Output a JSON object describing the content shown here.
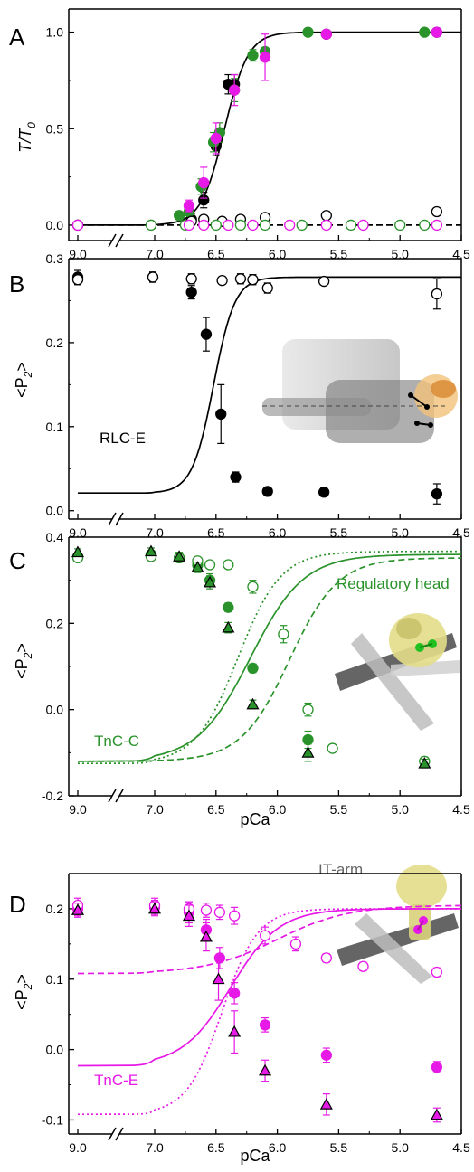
{
  "colors": {
    "black": "#000000",
    "green": "#2a922a",
    "magenta": "#e619e6",
    "gray": "#666666"
  },
  "chart_data": [
    {
      "panel_label": "A",
      "type": "scatter",
      "ylabel_main": "T/T",
      "ylabel_sub": "0",
      "xlabel": "",
      "xlim": [
        9.0,
        4.5
      ],
      "ylim": [
        -0.08,
        1.12
      ],
      "x_ticks": [
        "9.0",
        "7.0",
        "6.5",
        "6.0",
        "5.5",
        "5.0",
        "4.5"
      ],
      "y_ticks": [
        0.0,
        0.5,
        1.0
      ],
      "y_tick_labels": [
        "0.0",
        "0.5",
        "1.0"
      ],
      "series": [
        {
          "color": "black",
          "marker": "circle",
          "filled": true,
          "x": [
            9.0,
            6.7,
            6.6,
            6.5,
            6.4,
            6.35,
            5.6,
            4.7
          ],
          "y": [
            0.0,
            0.03,
            0.13,
            0.41,
            0.73,
            0.73,
            0.99,
            1.0
          ],
          "err": [
            0,
            0.03,
            0.04,
            0.05,
            0.05,
            0.05,
            0.01,
            0.01
          ]
        },
        {
          "color": "green",
          "marker": "circle",
          "filled": true,
          "x": [
            7.1,
            6.8,
            6.72,
            6.62,
            6.52,
            6.47,
            6.35,
            6.2,
            6.1,
            5.75,
            4.8
          ],
          "y": [
            0.0,
            0.05,
            0.07,
            0.2,
            0.43,
            0.48,
            0.7,
            0.88,
            0.9,
            1.0,
            1.0
          ],
          "err": [
            0,
            0.02,
            0.02,
            0.04,
            0.05,
            0.05,
            0.06,
            0.03,
            0.02,
            0.01,
            0.01
          ]
        },
        {
          "color": "magenta",
          "marker": "circle",
          "filled": true,
          "x": [
            9.0,
            6.72,
            6.6,
            6.5,
            6.35,
            6.1,
            5.6,
            4.7
          ],
          "y": [
            0.0,
            0.1,
            0.22,
            0.45,
            0.7,
            0.87,
            0.99,
            1.0
          ],
          "err": [
            0,
            0.03,
            0.08,
            0.08,
            0.08,
            0.12,
            0.01,
            0.01
          ]
        },
        {
          "color": "black",
          "marker": "circle",
          "filled": false,
          "x": [
            9.0,
            6.7,
            6.6,
            6.45,
            6.3,
            6.1,
            5.6,
            4.7
          ],
          "y": [
            0.0,
            0.02,
            0.03,
            0.02,
            0.03,
            0.04,
            0.05,
            0.07
          ],
          "err": [
            0,
            0,
            0,
            0,
            0,
            0,
            0,
            0
          ]
        },
        {
          "color": "green",
          "marker": "circle",
          "filled": false,
          "x": [
            7.1,
            6.75,
            6.5,
            6.3,
            6.1,
            5.8,
            5.4,
            5.0,
            4.8
          ],
          "y": [
            0.0,
            0.0,
            0.0,
            0.0,
            0.0,
            0.0,
            0.0,
            0.0,
            0.0
          ],
          "err": [
            0,
            0,
            0,
            0,
            0,
            0,
            0,
            0,
            0
          ]
        },
        {
          "color": "magenta",
          "marker": "circle",
          "filled": false,
          "x": [
            9.0,
            6.72,
            6.6,
            6.4,
            6.2,
            5.9,
            5.6,
            5.3,
            4.7
          ],
          "y": [
            0.0,
            0.0,
            0.0,
            0.0,
            0.0,
            0.0,
            0.0,
            0.0,
            0.0
          ],
          "err": [
            0,
            0,
            0,
            0,
            0,
            0,
            0,
            0,
            0
          ]
        }
      ],
      "fits": [
        {
          "color": "black",
          "style": "solid",
          "top": 1.0,
          "bottom": 0.0,
          "pca50": 6.43,
          "nh": 4.5
        },
        {
          "color": "black",
          "style": "dashed",
          "top": 0.0,
          "bottom": 0.0,
          "pca50": 6.0,
          "nh": 1.0
        }
      ]
    },
    {
      "panel_label": "B",
      "type": "scatter",
      "ylabel_main": "<P",
      "ylabel_sub": "2",
      "ylabel_end": ">",
      "xlabel": "",
      "xlim": [
        9.0,
        4.5
      ],
      "ylim": [
        -0.01,
        0.3
      ],
      "x_ticks": [
        "9.0",
        "7.0",
        "6.5",
        "6.0",
        "5.5",
        "5.0",
        "4.5"
      ],
      "y_ticks": [
        0.0,
        0.1,
        0.2,
        0.3
      ],
      "y_tick_labels": [
        "0.0",
        "0.1",
        "0.2",
        "0.3"
      ],
      "annotation": "RLC-E",
      "series": [
        {
          "color": "black",
          "marker": "circle",
          "filled": true,
          "x": [
            9.0,
            7.05,
            6.7,
            6.58,
            6.46,
            6.34,
            6.08,
            5.62,
            4.7
          ],
          "y": [
            0.278,
            0.278,
            0.26,
            0.21,
            0.115,
            0.04,
            0.023,
            0.022,
            0.02
          ],
          "err": [
            0.008,
            0.006,
            0.008,
            0.02,
            0.035,
            0.006,
            0.004,
            0.005,
            0.012
          ]
        },
        {
          "color": "black",
          "marker": "circle",
          "filled": false,
          "x": [
            9.0,
            7.05,
            6.7,
            6.45,
            6.3,
            6.2,
            6.08,
            5.62,
            4.7
          ],
          "y": [
            0.275,
            0.278,
            0.276,
            0.274,
            0.276,
            0.275,
            0.265,
            0.273,
            0.258
          ],
          "err": [
            0.006,
            0.006,
            0.006,
            0.004,
            0.006,
            0.006,
            0.006,
            0.004,
            0.018
          ]
        }
      ],
      "fits": [
        {
          "color": "black",
          "style": "solid",
          "top": 0.278,
          "bottom": 0.021,
          "pca50": 6.52,
          "nh": 5.0
        }
      ]
    },
    {
      "panel_label": "C",
      "type": "scatter",
      "ylabel_main": "<P",
      "ylabel_sub": "2",
      "ylabel_end": ">",
      "xlabel": "pCa",
      "xlim": [
        9.0,
        4.5
      ],
      "ylim": [
        -0.2,
        0.4
      ],
      "x_ticks": [
        "9.0",
        "7.0",
        "6.5",
        "6.0",
        "5.5",
        "5.0",
        "4.5"
      ],
      "y_ticks": [
        -0.2,
        0.0,
        0.2,
        0.4
      ],
      "y_tick_labels": [
        "-0.2",
        "0.0",
        "0.2",
        "0.4"
      ],
      "annotation": "TnC-C",
      "inset_label": "Regulatory head",
      "series": [
        {
          "color": "green",
          "marker": "circle",
          "filled": true,
          "x": [
            9.0,
            7.1,
            6.8,
            6.65,
            6.55,
            6.4,
            6.2,
            5.75,
            4.8
          ],
          "y": [
            0.355,
            0.36,
            0.352,
            0.335,
            0.3,
            0.237,
            0.096,
            -0.07,
            -0.12
          ],
          "err": [
            0.008,
            0.008,
            0.01,
            0.01,
            0.015,
            0.01,
            0.01,
            0.02,
            0.01
          ]
        },
        {
          "color": "green",
          "marker": "circle",
          "filled": false,
          "x": [
            9.0,
            7.1,
            6.8,
            6.65,
            6.55,
            6.4,
            6.2,
            5.95,
            5.75,
            5.55,
            4.8
          ],
          "y": [
            0.352,
            0.355,
            0.352,
            0.345,
            0.336,
            0.336,
            0.285,
            0.175,
            0.0,
            -0.09,
            -0.12
          ],
          "err": [
            0.008,
            0.008,
            0.008,
            0.008,
            0.008,
            0.006,
            0.015,
            0.02,
            0.015,
            0.008,
            0.008
          ]
        },
        {
          "color": "green",
          "marker": "triangle",
          "filled": true,
          "x": [
            9.0,
            7.1,
            6.8,
            6.65,
            6.55,
            6.4,
            6.2,
            5.75,
            4.8
          ],
          "y": [
            0.365,
            0.367,
            0.355,
            0.33,
            0.295,
            0.19,
            0.012,
            -0.1,
            -0.125
          ],
          "err": [
            0.008,
            0.008,
            0.01,
            0.012,
            0.015,
            0.012,
            0.01,
            0.02,
            0.01
          ]
        }
      ],
      "fits": [
        {
          "color": "green",
          "style": "solid",
          "top": 0.36,
          "bottom": -0.12,
          "pca50": 6.22,
          "nh": 2.0
        },
        {
          "color": "green",
          "style": "dashed",
          "top": 0.352,
          "bottom": -0.12,
          "pca50": 5.9,
          "nh": 2.2
        },
        {
          "color": "green",
          "style": "dotted",
          "top": 0.367,
          "bottom": -0.125,
          "pca50": 6.32,
          "nh": 2.5
        }
      ]
    },
    {
      "panel_label": "D",
      "type": "scatter",
      "ylabel_main": "<P",
      "ylabel_sub": "2",
      "ylabel_end": ">",
      "xlabel": "pCa",
      "xlim": [
        9.0,
        4.5
      ],
      "ylim": [
        -0.12,
        0.25
      ],
      "x_ticks": [
        "9.0",
        "7.0",
        "6.5",
        "6.0",
        "5.5",
        "5.0",
        "4.5"
      ],
      "y_ticks": [
        -0.1,
        0.0,
        0.1,
        0.2
      ],
      "y_tick_labels": [
        "-0.1",
        "0.0",
        "0.1",
        "0.2"
      ],
      "annotation": "TnC-E",
      "inset_label": "IT-arm",
      "series": [
        {
          "color": "magenta",
          "marker": "circle",
          "filled": true,
          "x": [
            9.0,
            7.0,
            6.72,
            6.58,
            6.47,
            6.35,
            6.1,
            5.6,
            4.7
          ],
          "y": [
            0.2,
            0.202,
            0.195,
            0.17,
            0.13,
            0.08,
            0.035,
            -0.008,
            -0.025
          ],
          "err": [
            0.01,
            0.01,
            0.015,
            0.015,
            0.015,
            0.015,
            0.01,
            0.01,
            0.008
          ]
        },
        {
          "color": "magenta",
          "marker": "circle",
          "filled": false,
          "x": [
            9.0,
            7.0,
            6.72,
            6.58,
            6.47,
            6.35,
            6.1,
            5.85,
            5.6,
            5.3,
            4.7
          ],
          "y": [
            0.205,
            0.205,
            0.2,
            0.198,
            0.195,
            0.19,
            0.162,
            0.15,
            0.13,
            0.118,
            0.11
          ],
          "err": [
            0.01,
            0.01,
            0.01,
            0.01,
            0.01,
            0.012,
            0.012,
            0.01,
            0.006,
            0.006,
            0.006
          ]
        },
        {
          "color": "magenta",
          "marker": "triangle",
          "filled": true,
          "x": [
            9.0,
            7.0,
            6.72,
            6.58,
            6.48,
            6.35,
            6.1,
            5.6,
            4.7
          ],
          "y": [
            0.198,
            0.2,
            0.19,
            0.16,
            0.1,
            0.025,
            -0.03,
            -0.078,
            -0.093
          ],
          "err": [
            0.01,
            0.01,
            0.015,
            0.02,
            0.03,
            0.03,
            0.015,
            0.015,
            0.01
          ]
        }
      ],
      "fits": [
        {
          "color": "magenta",
          "style": "solid",
          "top": 0.2,
          "bottom": -0.023,
          "pca50": 6.38,
          "nh": 2.2
        },
        {
          "color": "magenta",
          "style": "dashed",
          "top": 0.205,
          "bottom": 0.108,
          "pca50": 6.0,
          "nh": 1.5
        },
        {
          "color": "magenta",
          "style": "dotted",
          "top": 0.2,
          "bottom": -0.092,
          "pca50": 6.45,
          "nh": 3.0
        }
      ]
    }
  ]
}
